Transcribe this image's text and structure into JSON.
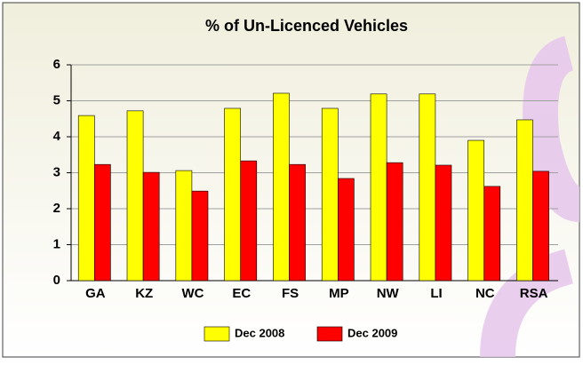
{
  "chart_data": {
    "type": "bar",
    "title": "% of Un-Licenced Vehicles",
    "categories": [
      "GA",
      "KZ",
      "WC",
      "EC",
      "FS",
      "MP",
      "NW",
      "LI",
      "NC",
      "RSA"
    ],
    "series": [
      {
        "name": "Dec 2008",
        "color": "#ffff00",
        "values": [
          4.59,
          4.72,
          3.06,
          4.79,
          5.21,
          4.79,
          5.19,
          5.19,
          3.9,
          4.47
        ]
      },
      {
        "name": "Dec 2009",
        "color": "#ff0000",
        "values": [
          3.23,
          3.01,
          2.49,
          3.33,
          3.23,
          2.84,
          3.28,
          3.21,
          2.62,
          3.04
        ]
      }
    ],
    "ylim": [
      0,
      6
    ],
    "yticks": [
      0,
      1,
      2,
      3,
      4,
      5,
      6
    ],
    "grid": true
  }
}
